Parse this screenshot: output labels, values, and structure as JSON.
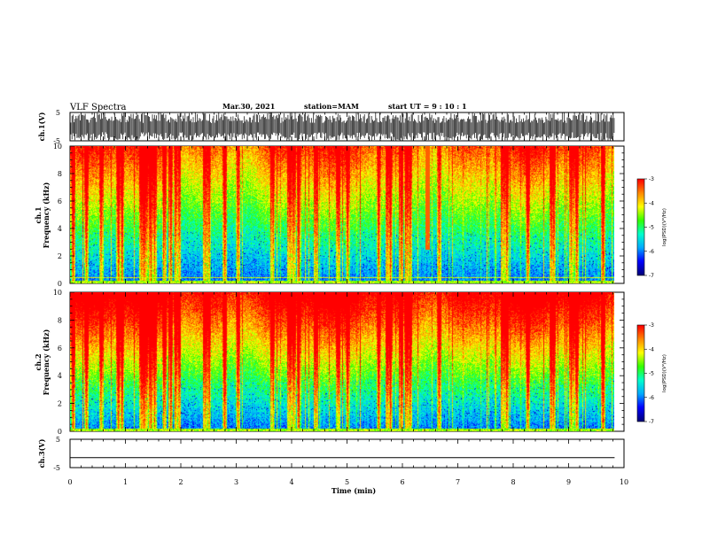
{
  "header": {
    "title": "VLF Spectra",
    "date": "Mar.30, 2021",
    "station": "station=MAM",
    "start": "start UT =  9 : 10 : 1"
  },
  "chart_data": [
    {
      "type": "line",
      "name": "ch1-waveform",
      "ylabel": "ch.1(V)",
      "ylim": [
        -5,
        5
      ],
      "yticks": [
        -5,
        5
      ],
      "xlim": [
        0,
        10
      ],
      "description_values": {
        "baseline": 0,
        "spike_amplitude_max": 5,
        "spike_amplitude_min": -5
      }
    },
    {
      "type": "heatmap",
      "name": "ch1-spectrogram",
      "ylabel_top": "ch.1",
      "ylabel": "Frequency (kHz)",
      "ylim": [
        0,
        10
      ],
      "yticks": [
        0,
        2,
        4,
        6,
        8,
        10
      ],
      "xlim": [
        0,
        9.83
      ],
      "colorbar": {
        "label": "log(PSD)(V²/Hz)",
        "range": [
          -7,
          -3
        ],
        "ticks": [
          -3,
          -4,
          -5,
          -6,
          -7
        ]
      }
    },
    {
      "type": "heatmap",
      "name": "ch2-spectrogram",
      "ylabel_top": "ch.2",
      "ylabel": "Frequency (kHz)",
      "ylim": [
        0,
        10
      ],
      "yticks": [
        0,
        2,
        4,
        6,
        8,
        10
      ],
      "xlim": [
        0,
        9.83
      ],
      "colorbar": {
        "label": "log(PSD)(V²/Hz)",
        "range": [
          -7,
          -3
        ],
        "ticks": [
          -3,
          -4,
          -5,
          -6,
          -7
        ]
      }
    },
    {
      "type": "line",
      "name": "ch3-waveform",
      "ylabel": "ch.3(V)",
      "ylim": [
        -5,
        5
      ],
      "yticks": [
        -5,
        5
      ],
      "x": [
        0,
        9.83
      ],
      "y": [
        -1.5,
        -1.5
      ]
    }
  ],
  "xaxis": {
    "label": "Time (min)",
    "range": [
      0,
      10
    ],
    "ticks": [
      "0",
      "1",
      "2",
      "3",
      "4",
      "5",
      "6",
      "7",
      "8",
      "9",
      "10"
    ]
  },
  "colors": {
    "colormap": [
      "#00007a",
      "#0000ff",
      "#00aaff",
      "#00ffcc",
      "#33ff00",
      "#ffff00",
      "#ff8800",
      "#ff0000"
    ]
  }
}
